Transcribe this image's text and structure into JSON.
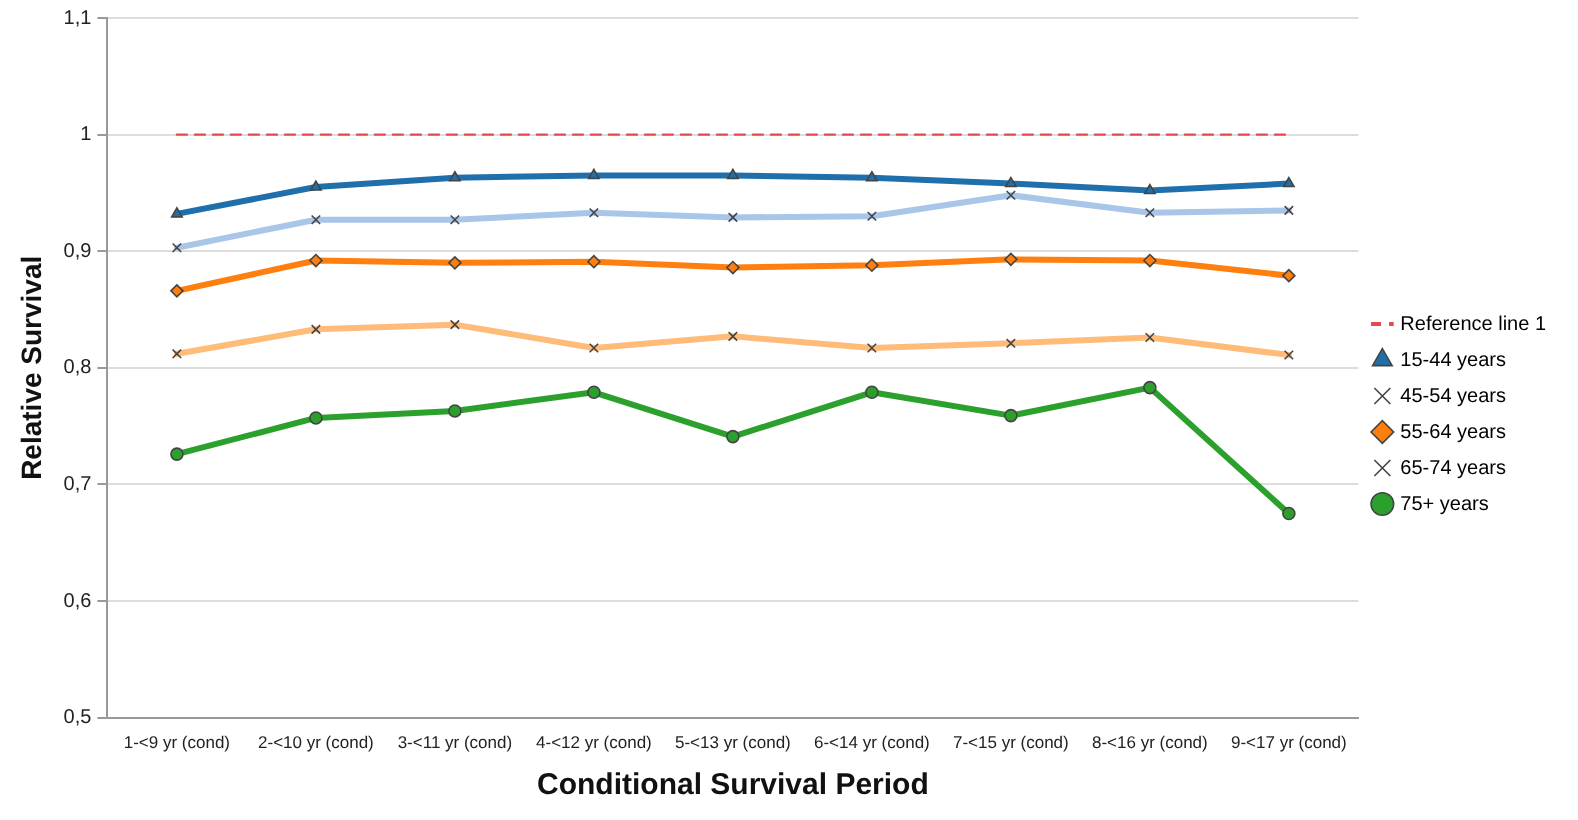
{
  "chart_data": {
    "type": "line",
    "xlabel": "Conditional Survival Period",
    "ylabel": "Relative Survival",
    "categories": [
      "1-<9 yr (cond)",
      "2-<10 yr (cond)",
      "3-<11 yr (cond)",
      "4-<12 yr (cond)",
      "5-<13 yr (cond)",
      "6-<14 yr (cond)",
      "7-<15 yr (cond)",
      "8-<16 yr (cond)",
      "9-<17 yr (cond)"
    ],
    "series": [
      {
        "name": "Reference line 1",
        "color": "#e8494f",
        "values": [
          1,
          1,
          1,
          1,
          1,
          1,
          1,
          1,
          1
        ],
        "line_style": "dashed",
        "marker": "none"
      },
      {
        "name": "15-44 years",
        "color": "#1f6fad",
        "values": [
          0.932,
          0.955,
          0.963,
          0.965,
          0.965,
          0.963,
          0.958,
          0.952,
          0.958
        ],
        "marker": "triangle"
      },
      {
        "name": "45-54 years",
        "color": "#a9c6e8",
        "values": [
          0.903,
          0.927,
          0.927,
          0.933,
          0.929,
          0.93,
          0.948,
          0.933,
          0.935
        ],
        "marker": "cross"
      },
      {
        "name": "55-64 years",
        "color": "#ff7f0e",
        "values": [
          0.866,
          0.892,
          0.89,
          0.891,
          0.886,
          0.888,
          0.893,
          0.892,
          0.879
        ],
        "marker": "diamond"
      },
      {
        "name": "65-74 years",
        "color": "#ffbb78",
        "values": [
          0.812,
          0.833,
          0.837,
          0.817,
          0.827,
          0.817,
          0.821,
          0.826,
          0.811
        ],
        "marker": "cross"
      },
      {
        "name": "75+ years",
        "color": "#2ca02c",
        "values": [
          0.726,
          0.757,
          0.763,
          0.779,
          0.741,
          0.779,
          0.759,
          0.783,
          0.675
        ],
        "marker": "circle"
      }
    ],
    "ylim": [
      0.5,
      1.1
    ],
    "yticks": [
      {
        "value": 0.5,
        "label": "0,5"
      },
      {
        "value": 0.6,
        "label": "0,6"
      },
      {
        "value": 0.7,
        "label": "0,7"
      },
      {
        "value": 0.8,
        "label": "0,8"
      },
      {
        "value": 0.9,
        "label": "0,9"
      },
      1,
      {
        "value": 1.1,
        "label": "1,1"
      }
    ],
    "grid": "y",
    "legend": "right"
  }
}
